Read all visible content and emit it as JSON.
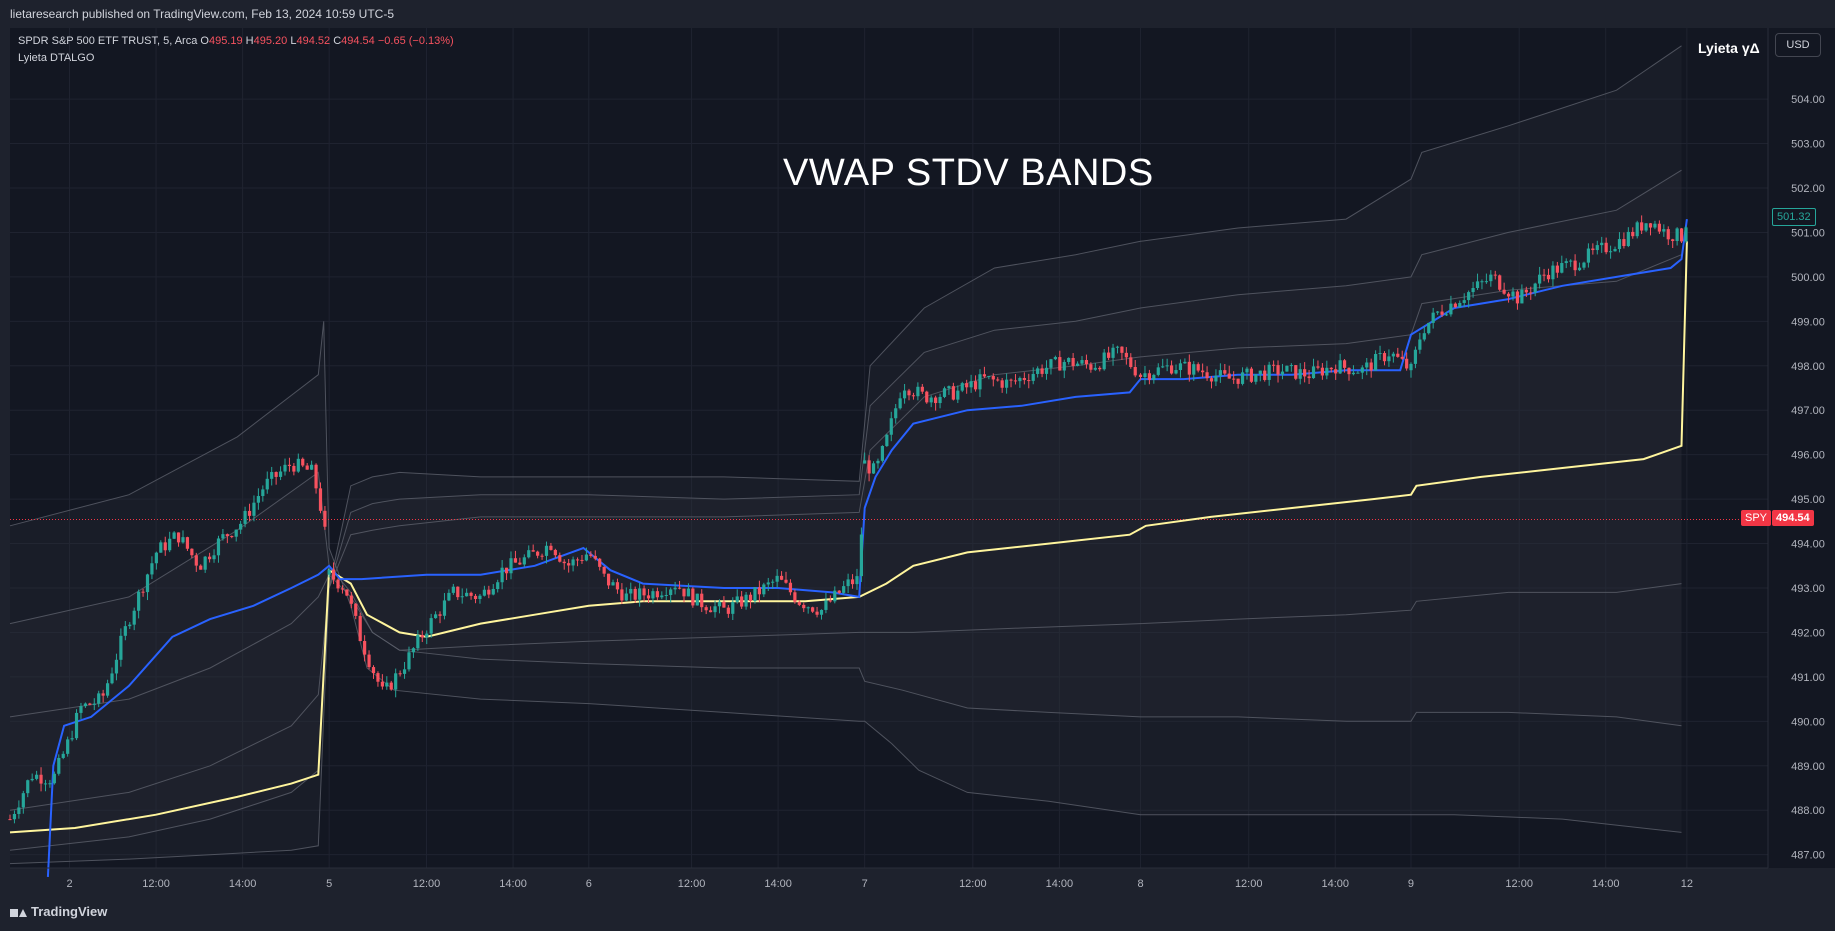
{
  "header": {
    "published": "lietaresearch published on TradingView.com, Feb 13, 2024 10:59 UTC-5"
  },
  "legend": {
    "symbol": "SPDR S&P 500 ETF TRUST, 5, Arca",
    "o_label": "O",
    "o": "495.19",
    "h_label": "H",
    "h": "495.20",
    "l_label": "L",
    "l": "494.52",
    "c_label": "C",
    "c": "494.54",
    "change": "−0.65 (−0.13%)",
    "indicator": "Lyieta DTALGO"
  },
  "indicator_name": "Lyieta γΔ",
  "currency_button": "USD",
  "price_tags": {
    "upper": "501.32",
    "symbol": "SPY",
    "last": "494.54"
  },
  "footer": {
    "brand": "TradingView"
  },
  "colors": {
    "up": "#26a69a",
    "down": "#f7525f",
    "vwap": "#2962ff",
    "anchored_vwap": "#fff59d",
    "bands": "#5d606b",
    "background": "#131722"
  },
  "chart_data": {
    "type": "candlestick",
    "title": "VWAP STDV BANDS",
    "symbol": "SPY",
    "interval": "5",
    "ylim": [
      486.7,
      505.6
    ],
    "y_ticks": [
      487,
      488,
      489,
      490,
      491,
      492,
      493,
      494,
      495,
      496,
      497,
      498,
      499,
      500,
      501,
      502,
      503,
      504
    ],
    "y_tick_labels": [
      "487.00",
      "488.00",
      "489.00",
      "490.00",
      "491.00",
      "492.00",
      "493.00",
      "494.00",
      "495.00",
      "496.00",
      "497.00",
      "498.00",
      "499.00",
      "500.00",
      "501.00",
      "502.00",
      "503.00",
      "504.00"
    ],
    "x_tick_labels": [
      {
        "label": "2",
        "t": 0.4
      },
      {
        "label": "12:00",
        "t": 2.0
      },
      {
        "label": "14:00",
        "t": 3.6
      },
      {
        "label": "5",
        "t": 5.2
      },
      {
        "label": "12:00",
        "t": 7.0
      },
      {
        "label": "14:00",
        "t": 8.6
      },
      {
        "label": "6",
        "t": 10.0
      },
      {
        "label": "12:00",
        "t": 11.9
      },
      {
        "label": "14:00",
        "t": 13.5
      },
      {
        "label": "7",
        "t": 15.1
      },
      {
        "label": "12:00",
        "t": 17.1
      },
      {
        "label": "14:00",
        "t": 18.7
      },
      {
        "label": "8",
        "t": 20.2
      },
      {
        "label": "12:00",
        "t": 22.2
      },
      {
        "label": "14:00",
        "t": 23.8
      },
      {
        "label": "9",
        "t": 25.2
      },
      {
        "label": "12:00",
        "t": 27.2
      },
      {
        "label": "14:00",
        "t": 28.8
      },
      {
        "label": "12",
        "t": 30.3
      }
    ],
    "t_range": [
      -0.7,
      31.8
    ],
    "price_trend": [
      [
        -0.7,
        487.8
      ],
      [
        -0.3,
        488.8
      ],
      [
        0.1,
        488.7
      ],
      [
        0.4,
        489.6
      ],
      [
        0.6,
        490.3
      ],
      [
        1.0,
        490.5
      ],
      [
        1.5,
        492.3
      ],
      [
        2.0,
        493.8
      ],
      [
        2.4,
        494.2
      ],
      [
        2.8,
        493.5
      ],
      [
        3.2,
        494.1
      ],
      [
        3.6,
        494.5
      ],
      [
        4.0,
        495.3
      ],
      [
        4.5,
        495.8
      ],
      [
        4.9,
        495.6
      ],
      [
        5.1,
        494.5
      ],
      [
        5.2,
        493.3
      ],
      [
        5.5,
        493.0
      ],
      [
        5.8,
        491.8
      ],
      [
        6.2,
        490.6
      ],
      [
        6.6,
        491.3
      ],
      [
        7.0,
        492.1
      ],
      [
        7.5,
        492.9
      ],
      [
        8.0,
        492.8
      ],
      [
        8.4,
        493.4
      ],
      [
        8.9,
        493.7
      ],
      [
        9.3,
        494.0
      ],
      [
        9.6,
        493.5
      ],
      [
        10.0,
        493.8
      ],
      [
        10.3,
        493.2
      ],
      [
        10.7,
        492.8
      ],
      [
        11.2,
        492.9
      ],
      [
        11.6,
        493.1
      ],
      [
        12.0,
        492.7
      ],
      [
        12.5,
        492.5
      ],
      [
        13.0,
        492.8
      ],
      [
        13.5,
        493.2
      ],
      [
        13.9,
        492.7
      ],
      [
        14.3,
        492.5
      ],
      [
        14.8,
        493.1
      ],
      [
        15.0,
        493.2
      ],
      [
        15.1,
        495.8
      ],
      [
        15.3,
        495.6
      ],
      [
        15.5,
        496.3
      ],
      [
        15.8,
        497.6
      ],
      [
        16.2,
        497.3
      ],
      [
        16.8,
        497.4
      ],
      [
        17.3,
        497.7
      ],
      [
        17.8,
        497.6
      ],
      [
        18.3,
        497.9
      ],
      [
        18.8,
        498.1
      ],
      [
        19.3,
        498.0
      ],
      [
        19.8,
        498.3
      ],
      [
        20.2,
        497.8
      ],
      [
        20.8,
        498.0
      ],
      [
        21.3,
        497.9
      ],
      [
        21.8,
        497.7
      ],
      [
        22.3,
        497.8
      ],
      [
        22.8,
        497.9
      ],
      [
        23.3,
        497.8
      ],
      [
        23.8,
        498.0
      ],
      [
        24.3,
        497.9
      ],
      [
        24.8,
        498.3
      ],
      [
        25.2,
        497.9
      ],
      [
        25.4,
        498.8
      ],
      [
        25.7,
        499.2
      ],
      [
        26.2,
        499.6
      ],
      [
        26.7,
        500.0
      ],
      [
        27.2,
        499.5
      ],
      [
        27.7,
        500.1
      ],
      [
        28.2,
        500.3
      ],
      [
        28.7,
        500.6
      ],
      [
        29.2,
        500.9
      ],
      [
        29.6,
        501.3
      ],
      [
        29.9,
        501.0
      ],
      [
        30.2,
        500.9
      ],
      [
        30.3,
        501.3
      ]
    ],
    "vwap": [
      [
        0.0,
        486.5
      ],
      [
        0.1,
        489.0
      ],
      [
        0.3,
        489.9
      ],
      [
        0.8,
        490.1
      ],
      [
        1.5,
        490.8
      ],
      [
        2.3,
        491.9
      ],
      [
        3.0,
        492.3
      ],
      [
        3.8,
        492.6
      ],
      [
        4.5,
        493.0
      ],
      [
        5.0,
        493.3
      ],
      [
        5.2,
        493.5
      ],
      [
        5.4,
        493.2
      ],
      [
        5.6,
        493.2
      ],
      [
        5.8,
        493.2
      ],
      [
        7.0,
        493.3
      ],
      [
        8.0,
        493.3
      ],
      [
        9.0,
        493.5
      ],
      [
        9.9,
        493.9
      ],
      [
        10.4,
        493.4
      ],
      [
        11.0,
        493.1
      ],
      [
        12.5,
        493.0
      ],
      [
        13.5,
        493.0
      ],
      [
        14.5,
        492.9
      ],
      [
        15.0,
        492.8
      ],
      [
        15.1,
        494.8
      ],
      [
        15.3,
        495.5
      ],
      [
        15.6,
        496.1
      ],
      [
        16.0,
        496.7
      ],
      [
        17.0,
        497.0
      ],
      [
        18.0,
        497.1
      ],
      [
        19.0,
        497.3
      ],
      [
        20.0,
        497.4
      ],
      [
        20.2,
        497.7
      ],
      [
        21.0,
        497.7
      ],
      [
        22.0,
        497.8
      ],
      [
        23.0,
        497.8
      ],
      [
        24.0,
        497.9
      ],
      [
        25.0,
        497.9
      ],
      [
        25.2,
        498.7
      ],
      [
        26.0,
        499.3
      ],
      [
        27.0,
        499.5
      ],
      [
        28.0,
        499.8
      ],
      [
        29.0,
        500.0
      ],
      [
        30.0,
        500.2
      ],
      [
        30.2,
        500.4
      ],
      [
        30.3,
        501.3
      ]
    ],
    "anchored_vwap": [
      [
        -0.7,
        487.5
      ],
      [
        0.5,
        487.6
      ],
      [
        2.0,
        487.9
      ],
      [
        3.5,
        488.3
      ],
      [
        4.5,
        488.6
      ],
      [
        5.0,
        488.8
      ],
      [
        5.2,
        493.4
      ],
      [
        5.6,
        493.1
      ],
      [
        5.9,
        492.4
      ],
      [
        6.5,
        492.0
      ],
      [
        7.0,
        491.9
      ],
      [
        8.0,
        492.2
      ],
      [
        9.0,
        492.4
      ],
      [
        10.0,
        492.6
      ],
      [
        11.0,
        492.7
      ],
      [
        12.5,
        492.7
      ],
      [
        14.0,
        492.7
      ],
      [
        15.0,
        492.8
      ],
      [
        15.5,
        493.1
      ],
      [
        16.0,
        493.5
      ],
      [
        17.0,
        493.8
      ],
      [
        18.5,
        494.0
      ],
      [
        20.0,
        494.2
      ],
      [
        20.3,
        494.4
      ],
      [
        21.5,
        494.6
      ],
      [
        23.0,
        494.8
      ],
      [
        24.5,
        495.0
      ],
      [
        25.2,
        495.1
      ],
      [
        25.3,
        495.3
      ],
      [
        26.5,
        495.5
      ],
      [
        28.0,
        495.7
      ],
      [
        29.5,
        495.9
      ],
      [
        30.2,
        496.2
      ],
      [
        30.3,
        500.8
      ]
    ],
    "bands": [
      {
        "name": "",
        "points": [
          [
            -0.7,
            494.4
          ],
          [
            1.5,
            495.1
          ],
          [
            3.5,
            496.4
          ],
          [
            5.0,
            497.8
          ],
          [
            5.1,
            499.0
          ],
          [
            5.2,
            493.9
          ],
          [
            5.6,
            492.6
          ],
          [
            5.9,
            491.2
          ],
          [
            6.4,
            490.7
          ],
          [
            8.0,
            490.5
          ],
          [
            10.0,
            490.4
          ],
          [
            12.5,
            490.2
          ],
          [
            15.0,
            490.0
          ],
          [
            15.1,
            490.0
          ],
          [
            15.6,
            489.5
          ],
          [
            16.1,
            488.9
          ],
          [
            17.0,
            488.4
          ],
          [
            18.5,
            488.2
          ],
          [
            20.2,
            487.9
          ],
          [
            22.0,
            487.9
          ],
          [
            24.0,
            487.9
          ],
          [
            25.2,
            487.9
          ],
          [
            26.0,
            487.9
          ],
          [
            28.0,
            487.8
          ],
          [
            30.2,
            487.5
          ]
        ]
      },
      {
        "name": "",
        "points": [
          [
            -0.7,
            492.2
          ],
          [
            1.5,
            492.8
          ],
          [
            3.5,
            494.3
          ],
          [
            5.0,
            495.6
          ],
          [
            5.2,
            493.5
          ],
          [
            5.6,
            492.9
          ],
          [
            6.0,
            492.0
          ],
          [
            6.5,
            491.6
          ],
          [
            8.0,
            491.4
          ],
          [
            10.0,
            491.3
          ],
          [
            12.5,
            491.2
          ],
          [
            15.0,
            491.2
          ],
          [
            15.1,
            490.9
          ],
          [
            15.8,
            490.7
          ],
          [
            17.0,
            490.3
          ],
          [
            18.5,
            490.2
          ],
          [
            20.2,
            490.1
          ],
          [
            22.0,
            490.1
          ],
          [
            24.0,
            490.0
          ],
          [
            25.2,
            490.0
          ],
          [
            25.3,
            490.2
          ],
          [
            27.0,
            490.2
          ],
          [
            29.0,
            490.1
          ],
          [
            30.2,
            489.9
          ]
        ]
      },
      {
        "name": "",
        "points": [
          [
            -0.7,
            490.1
          ],
          [
            1.5,
            490.5
          ],
          [
            3.0,
            491.2
          ],
          [
            4.5,
            492.2
          ],
          [
            5.0,
            492.8
          ],
          [
            5.2,
            493.3
          ],
          [
            5.6,
            492.8
          ],
          [
            6.0,
            492.0
          ],
          [
            6.5,
            491.6
          ],
          [
            8.0,
            491.7
          ],
          [
            10.0,
            491.8
          ],
          [
            12.5,
            491.9
          ],
          [
            15.0,
            492.0
          ],
          [
            15.1,
            492.0
          ],
          [
            16.0,
            492.0
          ],
          [
            18.0,
            492.1
          ],
          [
            20.2,
            492.2
          ],
          [
            22.0,
            492.3
          ],
          [
            24.0,
            492.4
          ],
          [
            25.2,
            492.5
          ],
          [
            25.3,
            492.7
          ],
          [
            27.0,
            492.9
          ],
          [
            29.0,
            492.9
          ],
          [
            30.2,
            493.1
          ]
        ]
      },
      {
        "name": "",
        "points": [
          [
            -0.7,
            488.0
          ],
          [
            1.5,
            488.4
          ],
          [
            3.0,
            489.0
          ],
          [
            4.5,
            489.9
          ],
          [
            5.0,
            490.6
          ],
          [
            5.2,
            493.0
          ],
          [
            5.6,
            494.2
          ],
          [
            6.0,
            494.3
          ],
          [
            6.5,
            494.4
          ],
          [
            8.0,
            494.6
          ],
          [
            10.0,
            494.6
          ],
          [
            12.5,
            494.6
          ],
          [
            15.0,
            494.7
          ],
          [
            15.2,
            496.1
          ],
          [
            16.2,
            497.3
          ],
          [
            17.5,
            497.8
          ],
          [
            19.0,
            498.0
          ],
          [
            20.2,
            498.2
          ],
          [
            22.0,
            498.4
          ],
          [
            24.0,
            498.5
          ],
          [
            25.2,
            498.7
          ],
          [
            25.4,
            499.4
          ],
          [
            27.0,
            499.7
          ],
          [
            29.0,
            499.9
          ],
          [
            30.2,
            500.5
          ]
        ]
      },
      {
        "name": "",
        "points": [
          [
            -0.7,
            487.1
          ],
          [
            1.5,
            487.4
          ],
          [
            3.0,
            487.8
          ],
          [
            4.5,
            488.4
          ],
          [
            5.0,
            488.9
          ],
          [
            5.2,
            493.0
          ],
          [
            5.6,
            494.7
          ],
          [
            6.0,
            494.9
          ],
          [
            6.5,
            495.0
          ],
          [
            8.0,
            495.1
          ],
          [
            10.0,
            495.1
          ],
          [
            12.5,
            495.0
          ],
          [
            15.0,
            495.1
          ],
          [
            15.2,
            497.1
          ],
          [
            16.2,
            498.3
          ],
          [
            17.5,
            498.8
          ],
          [
            19.0,
            499.0
          ],
          [
            20.2,
            499.3
          ],
          [
            22.0,
            499.6
          ],
          [
            24.0,
            499.8
          ],
          [
            25.2,
            500.0
          ],
          [
            25.4,
            500.5
          ],
          [
            27.0,
            501.0
          ],
          [
            29.0,
            501.5
          ],
          [
            30.2,
            502.4
          ]
        ]
      },
      {
        "name": "",
        "points": [
          [
            -0.7,
            486.8
          ],
          [
            1.5,
            486.9
          ],
          [
            3.0,
            487.0
          ],
          [
            4.5,
            487.1
          ],
          [
            5.0,
            487.2
          ],
          [
            5.2,
            493.0
          ],
          [
            5.6,
            495.3
          ],
          [
            6.0,
            495.5
          ],
          [
            6.5,
            495.6
          ],
          [
            8.0,
            495.5
          ],
          [
            10.0,
            495.5
          ],
          [
            12.5,
            495.5
          ],
          [
            15.0,
            495.4
          ],
          [
            15.2,
            498.0
          ],
          [
            16.2,
            499.3
          ],
          [
            17.5,
            500.2
          ],
          [
            19.0,
            500.5
          ],
          [
            20.2,
            500.8
          ],
          [
            22.0,
            501.1
          ],
          [
            24.0,
            501.3
          ],
          [
            25.2,
            502.2
          ],
          [
            25.4,
            502.8
          ],
          [
            27.0,
            503.4
          ],
          [
            29.0,
            504.2
          ],
          [
            30.2,
            505.2
          ]
        ]
      }
    ],
    "last_price": 494.54,
    "upper_label_price": 501.32
  }
}
